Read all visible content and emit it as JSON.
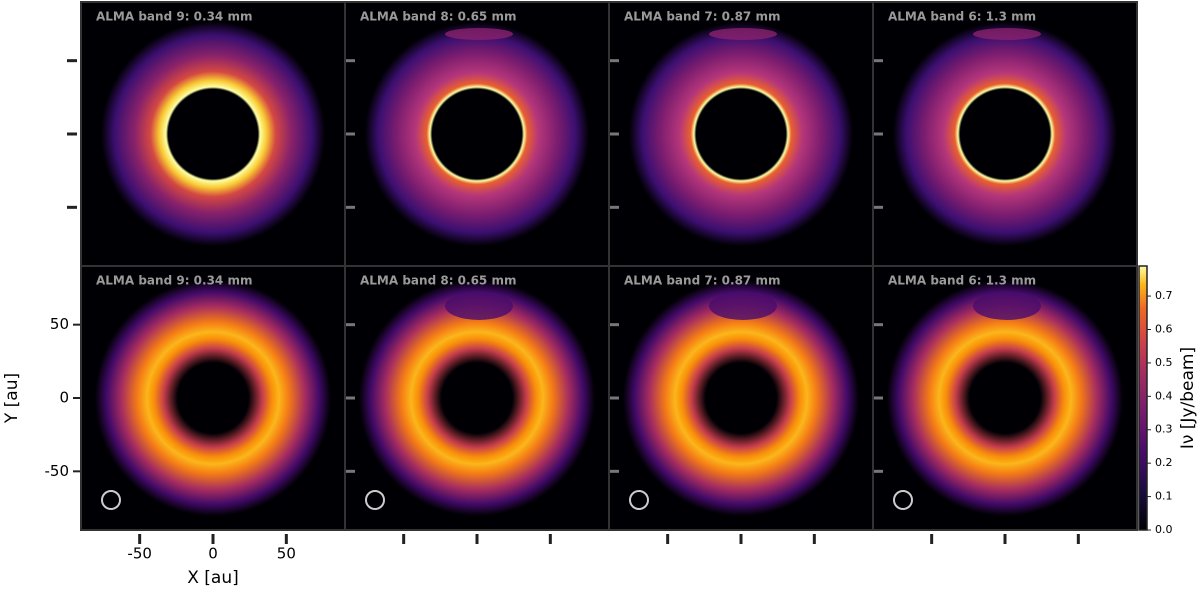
{
  "chart_data": {
    "type": "image-grid",
    "panel_titles": [
      [
        "ALMA band 9: 0.34 mm",
        "ALMA band 8: 0.65 mm",
        "ALMA band 7: 0.87 mm",
        "ALMA band 6: 1.3 mm"
      ],
      [
        "ALMA band 9: 0.34 mm",
        "ALMA band 8: 0.65 mm",
        "ALMA band 7: 0.87 mm",
        "ALMA band 6: 1.3 mm"
      ]
    ],
    "x_label": "X [au]",
    "y_label": "Y [au]",
    "xlim": [
      -90,
      90
    ],
    "ylim": [
      -90,
      90
    ],
    "xticks": [
      -50,
      0,
      50
    ],
    "yticks": [
      -50,
      0,
      50
    ],
    "colorbar": {
      "label": "Iν [Jy/beam]",
      "lim": [
        0,
        0.79
      ],
      "ticks": [
        {
          "value": 0,
          "label": "0.0"
        },
        0.1,
        0.2,
        0.3,
        0.4,
        0.5,
        0.6,
        0.7
      ]
    }
  }
}
